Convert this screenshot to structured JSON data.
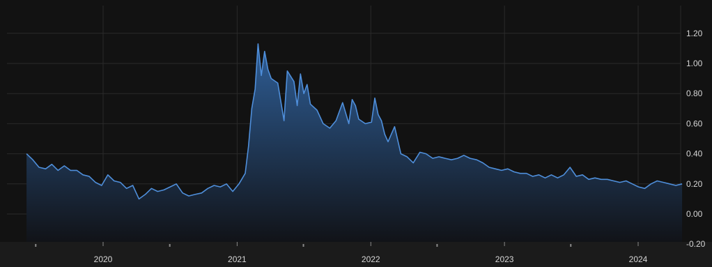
{
  "colors": {
    "background": "#121212",
    "grid": "#2a2a2a",
    "line": "#4f8fdb",
    "area_top": "#2f5f98",
    "area_bottom": "#111318",
    "tick_text": "#d6d6d6",
    "axis_strip": "#1b1b1b"
  },
  "chart_data": {
    "type": "area",
    "title": "",
    "xlabel": "",
    "ylabel": "",
    "x_ticks": [
      "2020",
      "2021",
      "2022",
      "2023",
      "2024"
    ],
    "y_ticks": [
      "1.20",
      "1.00",
      "0.80",
      "0.60",
      "0.40",
      "0.20",
      "0.00",
      "-0.20"
    ],
    "ylim": [
      -0.2,
      1.3
    ],
    "xlim": [
      "2019-06-05",
      "2024-05-03"
    ],
    "grid": true,
    "y_axis_position": "right",
    "legend": "none",
    "series": [
      {
        "x": [
          "2019-06-06",
          "2019-06-23",
          "2019-07-10",
          "2019-07-28",
          "2019-08-14",
          "2019-08-31",
          "2019-09-17",
          "2019-10-04",
          "2019-10-21",
          "2019-11-07",
          "2019-11-24",
          "2019-12-11",
          "2019-12-28",
          "2020-01-14",
          "2020-01-31",
          "2020-02-17",
          "2020-03-05",
          "2020-03-22",
          "2020-04-08",
          "2020-04-25",
          "2020-05-12",
          "2020-05-29",
          "2020-06-15",
          "2020-07-02",
          "2020-07-19",
          "2020-08-05",
          "2020-08-22",
          "2020-09-08",
          "2020-09-26",
          "2020-10-13",
          "2020-10-30",
          "2020-11-16",
          "2020-12-03",
          "2020-12-20",
          "2021-01-06",
          "2021-01-23",
          "2021-02-01",
          "2021-02-10",
          "2021-02-19",
          "2021-02-27",
          "2021-03-08",
          "2021-03-17",
          "2021-03-26",
          "2021-04-04",
          "2021-04-22",
          "2021-05-09",
          "2021-05-18",
          "2021-06-05",
          "2021-06-14",
          "2021-06-23",
          "2021-07-02",
          "2021-07-11",
          "2021-07-20",
          "2021-08-07",
          "2021-08-24",
          "2021-09-11",
          "2021-09-28",
          "2021-10-16",
          "2021-11-02",
          "2021-11-11",
          "2021-11-20",
          "2021-11-29",
          "2021-12-17",
          "2022-01-03",
          "2022-01-12",
          "2022-01-21",
          "2022-01-30",
          "2022-02-08",
          "2022-02-17",
          "2022-03-07",
          "2022-03-24",
          "2022-04-10",
          "2022-04-27",
          "2022-05-15",
          "2022-06-01",
          "2022-06-19",
          "2022-07-06",
          "2022-07-23",
          "2022-08-09",
          "2022-08-26",
          "2022-09-12",
          "2022-09-29",
          "2022-10-17",
          "2022-11-03",
          "2022-11-20",
          "2022-12-07",
          "2022-12-24",
          "2023-01-10",
          "2023-01-27",
          "2023-02-13",
          "2023-03-02",
          "2023-03-19",
          "2023-04-05",
          "2023-04-22",
          "2023-05-09",
          "2023-05-26",
          "2023-06-12",
          "2023-06-29",
          "2023-07-16",
          "2023-08-02",
          "2023-08-19",
          "2023-09-05",
          "2023-09-22",
          "2023-10-09",
          "2023-10-26",
          "2023-11-12",
          "2023-11-29",
          "2023-12-16",
          "2024-01-02",
          "2024-01-19",
          "2024-02-05",
          "2024-02-22",
          "2024-03-10",
          "2024-03-27",
          "2024-04-13",
          "2024-04-30"
        ],
        "y": [
          0.4,
          0.36,
          0.31,
          0.3,
          0.33,
          0.29,
          0.32,
          0.29,
          0.29,
          0.26,
          0.25,
          0.21,
          0.19,
          0.26,
          0.22,
          0.21,
          0.17,
          0.19,
          0.1,
          0.13,
          0.17,
          0.15,
          0.16,
          0.18,
          0.2,
          0.14,
          0.12,
          0.13,
          0.14,
          0.17,
          0.19,
          0.18,
          0.2,
          0.15,
          0.2,
          0.27,
          0.45,
          0.7,
          0.83,
          1.13,
          0.92,
          1.08,
          0.96,
          0.9,
          0.87,
          0.62,
          0.95,
          0.88,
          0.72,
          0.93,
          0.8,
          0.86,
          0.73,
          0.69,
          0.6,
          0.57,
          0.62,
          0.74,
          0.6,
          0.76,
          0.72,
          0.63,
          0.6,
          0.61,
          0.77,
          0.66,
          0.62,
          0.53,
          0.48,
          0.58,
          0.4,
          0.38,
          0.34,
          0.41,
          0.4,
          0.37,
          0.38,
          0.37,
          0.36,
          0.37,
          0.39,
          0.37,
          0.36,
          0.34,
          0.31,
          0.3,
          0.29,
          0.3,
          0.28,
          0.27,
          0.27,
          0.25,
          0.26,
          0.24,
          0.26,
          0.24,
          0.26,
          0.31,
          0.25,
          0.26,
          0.23,
          0.24,
          0.23,
          0.23,
          0.22,
          0.21,
          0.22,
          0.2,
          0.18,
          0.17,
          0.2,
          0.22,
          0.21,
          0.2,
          0.19,
          0.2
        ]
      }
    ]
  }
}
